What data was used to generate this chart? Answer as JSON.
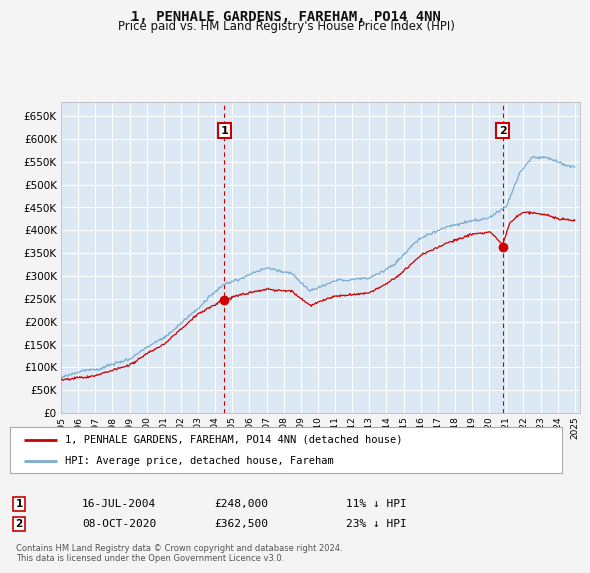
{
  "title": "1, PENHALE GARDENS, FAREHAM, PO14 4NN",
  "subtitle": "Price paid vs. HM Land Registry's House Price Index (HPI)",
  "legend_label_red": "1, PENHALE GARDENS, FAREHAM, PO14 4NN (detached house)",
  "legend_label_blue": "HPI: Average price, detached house, Fareham",
  "annotation1": {
    "label": "1",
    "date": "16-JUL-2004",
    "price": 248000,
    "note": "11% ↓ HPI"
  },
  "annotation2": {
    "label": "2",
    "date": "08-OCT-2020",
    "price": 362500,
    "note": "23% ↓ HPI"
  },
  "footer": "Contains HM Land Registry data © Crown copyright and database right 2024.\nThis data is licensed under the Open Government Licence v3.0.",
  "fig_bg_color": "#f4f4f4",
  "plot_bg_color": "#dce9f5",
  "ylim": [
    0,
    680000
  ],
  "yticks": [
    0,
    50000,
    100000,
    150000,
    200000,
    250000,
    300000,
    350000,
    400000,
    450000,
    500000,
    550000,
    600000,
    650000
  ],
  "red_color": "#cc0000",
  "blue_color": "#7aadcf",
  "grid_color": "#ffffff",
  "annotation_box_color": "#cc0000",
  "vline_color": "#cc0000",
  "sale1_t": 2004.542,
  "sale2_t": 2020.792,
  "sale1_price": 248000,
  "sale2_price": 362500,
  "hpi_anchors_t": [
    1995.0,
    1997.0,
    1999.0,
    2001.0,
    2003.0,
    2004.5,
    2005.5,
    2007.0,
    2008.5,
    2009.5,
    2011.0,
    2013.0,
    2014.5,
    2016.0,
    2017.5,
    2019.0,
    2020.0,
    2021.0,
    2021.8,
    2022.5,
    2023.5,
    2024.5,
    2025.0
  ],
  "hpi_anchors_v": [
    78000,
    95000,
    120000,
    165000,
    230000,
    282000,
    295000,
    320000,
    310000,
    275000,
    295000,
    300000,
    330000,
    385000,
    410000,
    425000,
    430000,
    455000,
    530000,
    565000,
    560000,
    545000,
    540000
  ],
  "red_anchors_t": [
    1995.0,
    1997.0,
    1999.0,
    2001.0,
    2003.0,
    2004.542,
    2005.5,
    2007.0,
    2008.5,
    2009.5,
    2011.0,
    2013.0,
    2014.5,
    2016.0,
    2017.5,
    2019.0,
    2020.0,
    2020.792,
    2021.2,
    2022.0,
    2023.0,
    2024.0,
    2025.0
  ],
  "red_anchors_v": [
    72000,
    85000,
    105000,
    148000,
    215000,
    248000,
    258000,
    270000,
    265000,
    235000,
    255000,
    260000,
    290000,
    340000,
    365000,
    385000,
    390000,
    362500,
    410000,
    435000,
    430000,
    420000,
    415000
  ]
}
